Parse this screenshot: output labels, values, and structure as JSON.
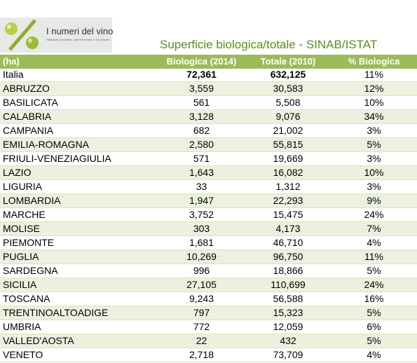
{
  "logo": {
    "title": "I numeri del vino",
    "subtitle": "Statistiche produttive, dati di mercato e di consumo."
  },
  "title": "Superficie biologica/totale - SINAB/ISTAT",
  "table": {
    "header": [
      "(ha)",
      "Biologica (2014)",
      "Totale (2010)",
      "% Biologica"
    ],
    "rows": [
      [
        "Italia",
        "72,361",
        "632,125",
        "11%"
      ],
      [
        "ABRUZZO",
        "3,559",
        "30,583",
        "12%"
      ],
      [
        "BASILICATA",
        "561",
        "5,508",
        "10%"
      ],
      [
        "CALABRIA",
        "3,128",
        "9,076",
        "34%"
      ],
      [
        "CAMPANIA",
        "682",
        "21,002",
        "3%"
      ],
      [
        "EMILIA-ROMAGNA",
        "2,580",
        "55,815",
        "5%"
      ],
      [
        "FRIULI-VENEZIAGIULIA",
        "571",
        "19,669",
        "3%"
      ],
      [
        "LAZIO",
        "1,643",
        "16,082",
        "10%"
      ],
      [
        "LIGURIA",
        "33",
        "1,312",
        "3%"
      ],
      [
        "LOMBARDIA",
        "1,947",
        "22,293",
        "9%"
      ],
      [
        "MARCHE",
        "3,752",
        "15,475",
        "24%"
      ],
      [
        "MOLISE",
        "303",
        "4,173",
        "7%"
      ],
      [
        "PIEMONTE",
        "1,681",
        "46,710",
        "4%"
      ],
      [
        "PUGLIA",
        "10,269",
        "96,750",
        "11%"
      ],
      [
        "SARDEGNA",
        "996",
        "18,866",
        "5%"
      ],
      [
        "SICILIA",
        "27,105",
        "110,699",
        "24%"
      ],
      [
        "TOSCANA",
        "9,243",
        "56,588",
        "16%"
      ],
      [
        "TRENTINOALTOADIGE",
        "797",
        "15,323",
        "5%"
      ],
      [
        "UMBRIA",
        "772",
        "12,059",
        "6%"
      ],
      [
        "VALLED'AOSTA",
        "22",
        "432",
        "5%"
      ],
      [
        "VENETO",
        "2,718",
        "73,709",
        "4%"
      ]
    ]
  }
}
